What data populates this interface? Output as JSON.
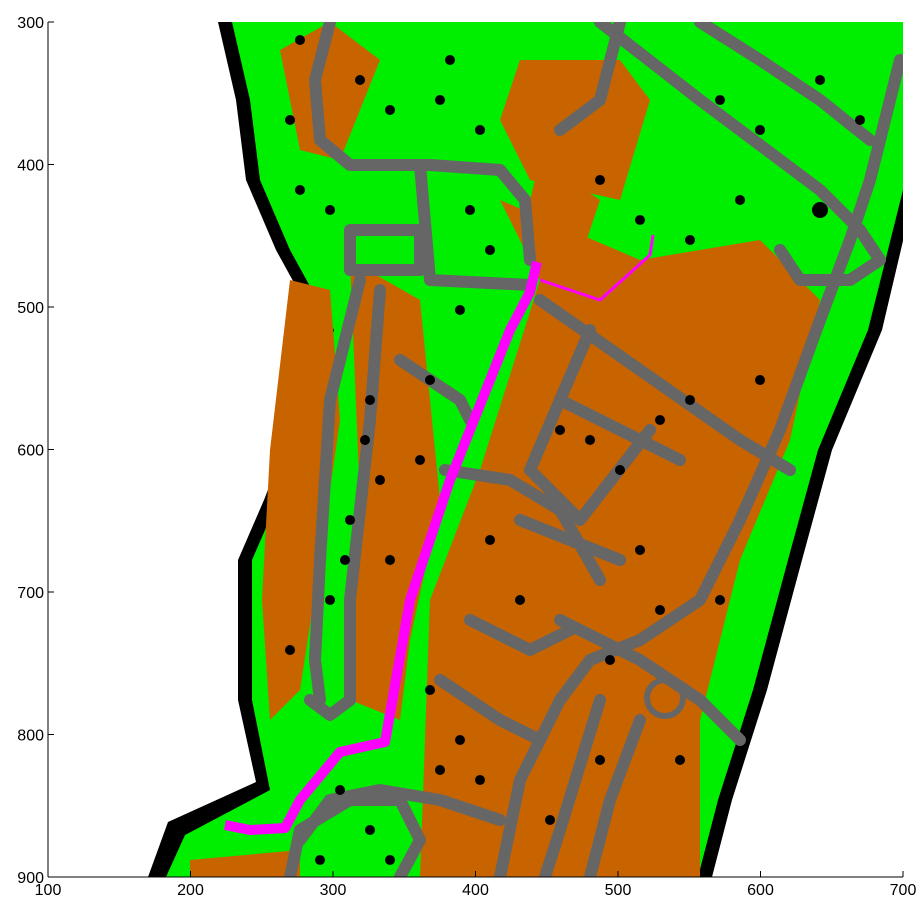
{
  "chart_data": {
    "type": "image",
    "xlim": [
      100,
      700
    ],
    "ylim": [
      300,
      900
    ],
    "xticks": [
      100,
      200,
      300,
      400,
      500,
      600,
      700
    ],
    "yticks": [
      300,
      400,
      500,
      600,
      700,
      800,
      900
    ]
  }
}
